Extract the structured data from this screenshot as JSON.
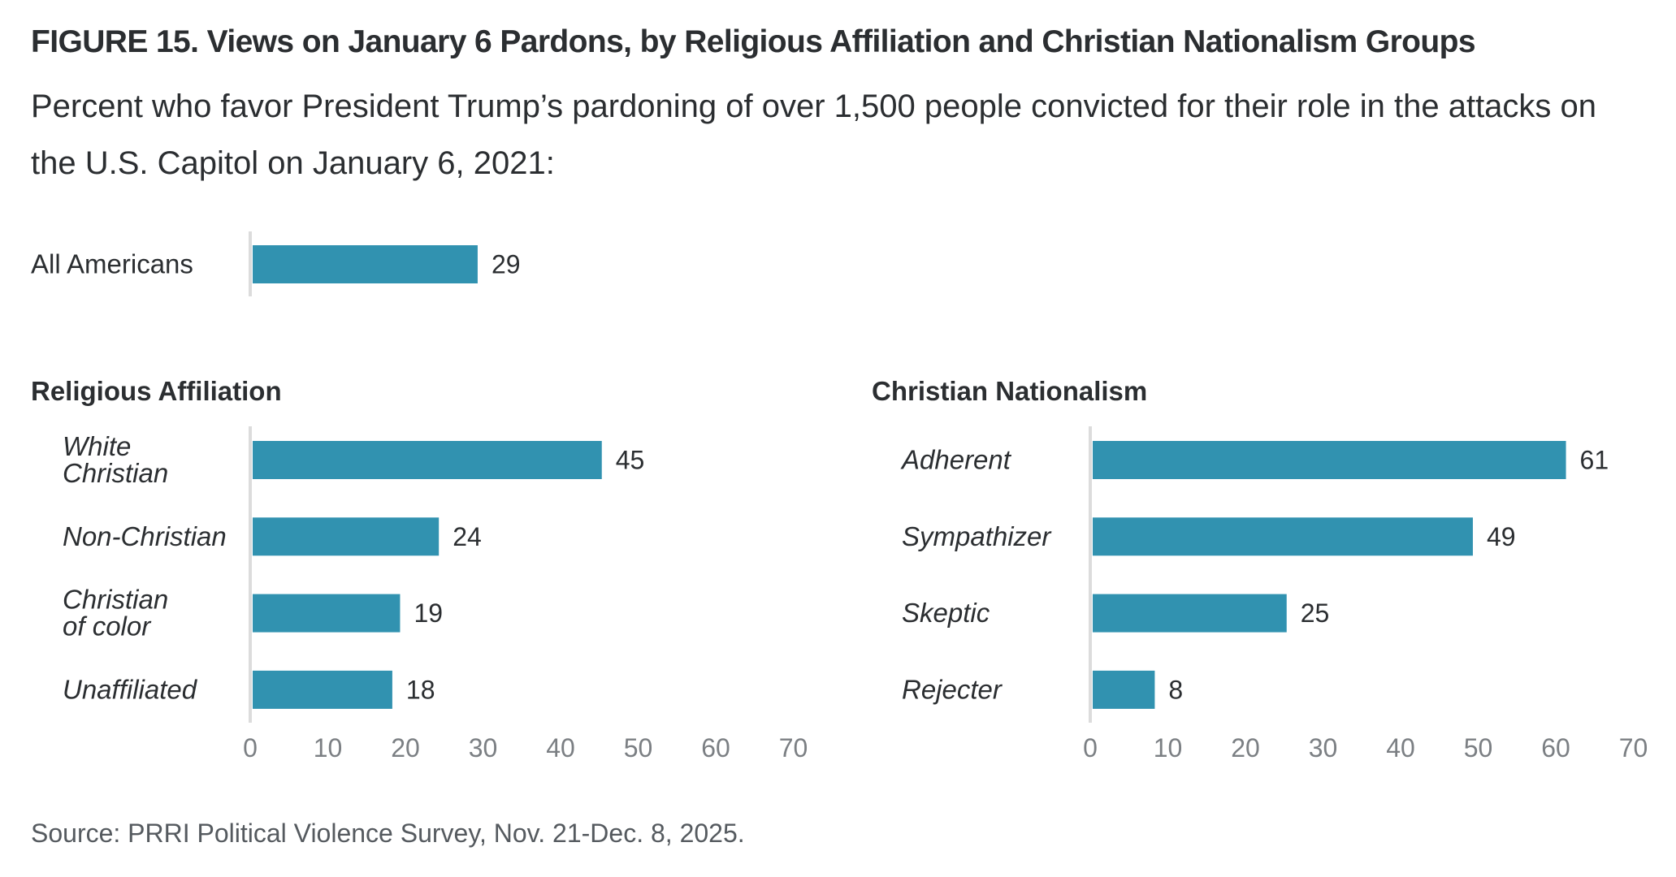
{
  "header": {
    "title": "FIGURE 15.  Views on January 6 Pardons, by Religious Affiliation and Christian Nationalism Groups",
    "subtitle": "Percent who favor President Trump’s pardoning of over 1,500 people convicted for their role in the attacks on the U.S. Capitol on January 6, 2021:"
  },
  "footer": {
    "source": "Source: PRRI Political Violence Survey, Nov. 21-Dec. 8, 2025."
  },
  "colors": {
    "bar": "#3192b0",
    "axis_line": "#dcdcdc",
    "tick_text": "#7b7f83",
    "text": "#2b2e31"
  },
  "chart_data": [
    {
      "type": "bar",
      "orientation": "horizontal",
      "panel": "overall",
      "title": "",
      "categories": [
        "All Americans"
      ],
      "values": [
        29
      ],
      "category_style": "normal",
      "xlim": [
        0,
        70
      ]
    },
    {
      "type": "bar",
      "orientation": "horizontal",
      "panel": "left",
      "title": "Religious Affiliation",
      "categories": [
        "White Christian",
        "Non-Christian",
        "Christian of color",
        "Unaffiliated"
      ],
      "category_lines": [
        [
          "White",
          "Christian"
        ],
        [
          "Non-Christian"
        ],
        [
          "Christian",
          "of color"
        ],
        [
          "Unaffiliated"
        ]
      ],
      "values": [
        45,
        24,
        19,
        18
      ],
      "category_style": "italic",
      "xlim": [
        0,
        70
      ],
      "xticks": [
        0,
        10,
        20,
        30,
        40,
        50,
        60,
        70
      ],
      "xlabel": "",
      "grid": false
    },
    {
      "type": "bar",
      "orientation": "horizontal",
      "panel": "right",
      "title": "Christian Nationalism",
      "categories": [
        "Adherent",
        "Sympathizer",
        "Skeptic",
        "Rejecter"
      ],
      "category_lines": [
        [
          "Adherent"
        ],
        [
          "Sympathizer"
        ],
        [
          "Skeptic"
        ],
        [
          "Rejecter"
        ]
      ],
      "values": [
        61,
        49,
        25,
        8
      ],
      "category_style": "italic",
      "xlim": [
        0,
        70
      ],
      "xticks": [
        0,
        10,
        20,
        30,
        40,
        50,
        60,
        70
      ],
      "xlabel": "",
      "grid": false
    }
  ]
}
